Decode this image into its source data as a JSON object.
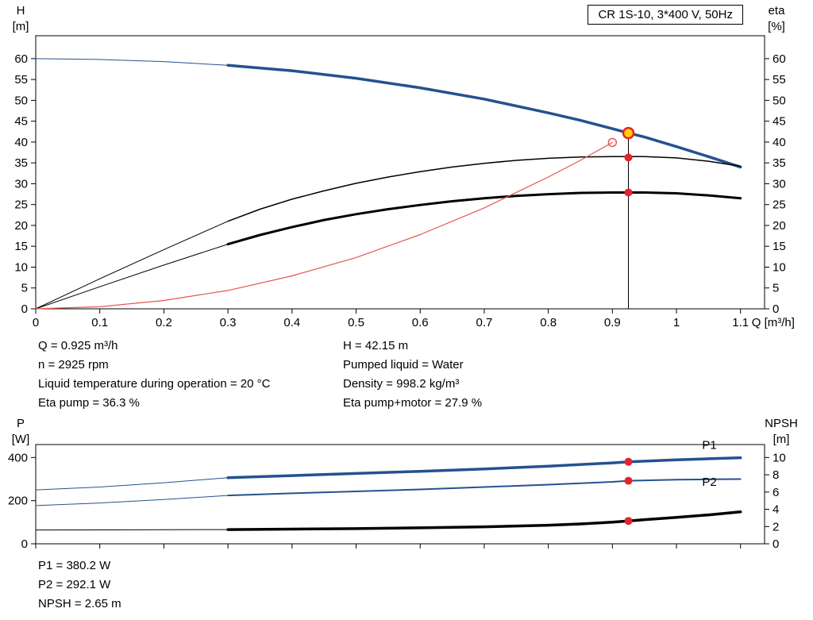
{
  "title_box": "CR 1S-10, 3*400 V, 50Hz",
  "info_top": {
    "left": [
      "Q = 0.925 m³/h",
      "n = 2925 rpm",
      "Liquid temperature during operation = 20 °C",
      "Eta pump = 36.3 %"
    ],
    "right": [
      "H = 42.15 m",
      "Pumped liquid = Water",
      "Density = 998.2 kg/m³",
      "Eta pump+motor = 27.9 %"
    ]
  },
  "info_bottom": [
    "P1 = 380.2 W",
    "P2 = 292.1 W",
    "NPSH = 2.65 m"
  ],
  "colors": {
    "curve_blue": "#25518f",
    "curve_black": "#000000",
    "system_red": "#e4564e",
    "duty_red": "#e8222d",
    "duty_yellow": "#ffd400"
  },
  "chart_data": [
    {
      "id": "qh-eta",
      "type": "line",
      "title": "CR 1S-10, 3*400 V, 50Hz",
      "xlabel": "Q [m³/h]",
      "grid": false,
      "axes": {
        "x": {
          "lim": [
            0,
            1.1375
          ],
          "ticks": [
            0,
            0.1,
            0.2,
            0.3,
            0.4,
            0.5,
            0.6,
            0.7,
            0.8,
            0.9,
            1.0,
            1.1
          ],
          "labels": true
        },
        "left": {
          "label": "H",
          "unit": "[m]",
          "lim": [
            0,
            65.5
          ],
          "ticks": [
            0,
            5,
            10,
            15,
            20,
            25,
            30,
            35,
            40,
            45,
            50,
            55,
            60
          ]
        },
        "right": {
          "label": "eta",
          "unit": "[%]",
          "lim": [
            0,
            65.5
          ],
          "ticks": [
            0,
            5,
            10,
            15,
            20,
            25,
            30,
            35,
            40,
            45,
            50,
            55,
            60
          ]
        }
      },
      "series": [
        {
          "name": "head-lead",
          "color": "#25518f",
          "width": 1,
          "points": [
            [
              0,
              60
            ],
            [
              0.1,
              59.8
            ],
            [
              0.2,
              59.3
            ],
            [
              0.3,
              58.4
            ]
          ]
        },
        {
          "name": "head",
          "color": "#25518f",
          "width": 3.5,
          "points": [
            [
              0.3,
              58.4
            ],
            [
              0.4,
              57.1
            ],
            [
              0.5,
              55.3
            ],
            [
              0.6,
              53.0
            ],
            [
              0.7,
              50.3
            ],
            [
              0.8,
              47.0
            ],
            [
              0.85,
              45.2
            ],
            [
              0.9,
              43.2
            ],
            [
              0.925,
              42.15
            ],
            [
              0.95,
              41.2
            ],
            [
              1.0,
              38.9
            ],
            [
              1.05,
              36.5
            ],
            [
              1.1,
              34.0
            ]
          ]
        },
        {
          "name": "eta-pump-lead",
          "color": "#000000",
          "width": 1,
          "points": [
            [
              0,
              0
            ],
            [
              0.1,
              7.2
            ],
            [
              0.2,
              14.2
            ],
            [
              0.3,
              21.0
            ]
          ]
        },
        {
          "name": "eta-pump",
          "color": "#000000",
          "width": 1.5,
          "points": [
            [
              0.3,
              21.0
            ],
            [
              0.35,
              23.9
            ],
            [
              0.4,
              26.3
            ],
            [
              0.45,
              28.3
            ],
            [
              0.5,
              30.1
            ],
            [
              0.55,
              31.6
            ],
            [
              0.6,
              32.9
            ],
            [
              0.65,
              34.0
            ],
            [
              0.7,
              34.9
            ],
            [
              0.75,
              35.6
            ],
            [
              0.8,
              36.1
            ],
            [
              0.85,
              36.4
            ],
            [
              0.9,
              36.5
            ],
            [
              0.95,
              36.5
            ],
            [
              1.0,
              36.2
            ],
            [
              1.05,
              35.4
            ],
            [
              1.1,
              34.2
            ]
          ]
        },
        {
          "name": "eta-pump-motor-lead",
          "color": "#000000",
          "width": 1,
          "points": [
            [
              0,
              0
            ],
            [
              0.1,
              5.3
            ],
            [
              0.2,
              10.5
            ],
            [
              0.3,
              15.5
            ]
          ]
        },
        {
          "name": "eta-pump-motor",
          "color": "#000000",
          "width": 3,
          "points": [
            [
              0.3,
              15.5
            ],
            [
              0.35,
              17.7
            ],
            [
              0.4,
              19.6
            ],
            [
              0.45,
              21.3
            ],
            [
              0.5,
              22.7
            ],
            [
              0.55,
              23.9
            ],
            [
              0.6,
              24.9
            ],
            [
              0.65,
              25.8
            ],
            [
              0.7,
              26.5
            ],
            [
              0.75,
              27.1
            ],
            [
              0.8,
              27.5
            ],
            [
              0.85,
              27.8
            ],
            [
              0.9,
              27.9
            ],
            [
              0.95,
              27.9
            ],
            [
              1.0,
              27.7
            ],
            [
              1.05,
              27.2
            ],
            [
              1.1,
              26.5
            ]
          ]
        },
        {
          "name": "system-curve",
          "color": "#e4564e",
          "width": 1.2,
          "points": [
            [
              0,
              0
            ],
            [
              0.1,
              0.5
            ],
            [
              0.2,
              2.0
            ],
            [
              0.3,
              4.4
            ],
            [
              0.4,
              7.9
            ],
            [
              0.5,
              12.3
            ],
            [
              0.6,
              17.8
            ],
            [
              0.7,
              24.2
            ],
            [
              0.8,
              31.6
            ],
            [
              0.85,
              35.6
            ],
            [
              0.9,
              39.9
            ]
          ]
        }
      ],
      "vlines": [
        {
          "name": "duty-flow-line",
          "x": 0.925,
          "y1": 0,
          "y2": 42.15,
          "color": "#000000",
          "width": 1
        }
      ],
      "markers": [
        {
          "name": "system-curve-end-marker",
          "x": 0.9,
          "y": 39.9,
          "r": 5,
          "fill": "none",
          "stroke": "#e4564e",
          "sw": 1.5
        },
        {
          "name": "duty-point-marker",
          "x": 0.925,
          "y": 42.15,
          "r": 6.5,
          "fill": "#ffd400",
          "stroke": "#e8222d",
          "sw": 2.5
        },
        {
          "name": "eta-pump-duty-marker",
          "x": 0.925,
          "y": 36.3,
          "r": 5,
          "fill": "#e8222d"
        },
        {
          "name": "eta-pump-motor-duty-marker",
          "x": 0.925,
          "y": 27.9,
          "r": 5,
          "fill": "#e8222d"
        }
      ],
      "labels": []
    },
    {
      "id": "power-npsh",
      "type": "line",
      "title": "",
      "xlabel": "",
      "grid": false,
      "axes": {
        "x": {
          "lim": [
            0,
            1.1375
          ],
          "ticks": [
            0,
            0.1,
            0.2,
            0.3,
            0.4,
            0.5,
            0.6,
            0.7,
            0.8,
            0.9,
            1.0,
            1.1
          ],
          "labels": false
        },
        "left": {
          "label": "P",
          "unit": "[W]",
          "lim": [
            0,
            460
          ],
          "ticks": [
            0,
            200,
            400
          ]
        },
        "right": {
          "label": "NPSH",
          "unit": "[m]",
          "lim": [
            0,
            11.5
          ],
          "ticks": [
            0,
            2,
            4,
            6,
            8,
            10
          ]
        }
      },
      "series": [
        {
          "name": "p1-lead",
          "color": "#25518f",
          "width": 1,
          "points": [
            [
              0,
              250
            ],
            [
              0.1,
              263
            ],
            [
              0.2,
              283
            ],
            [
              0.3,
              306
            ]
          ]
        },
        {
          "name": "p1",
          "color": "#25518f",
          "width": 3.5,
          "points": [
            [
              0.3,
              306
            ],
            [
              0.4,
              316
            ],
            [
              0.5,
              326
            ],
            [
              0.6,
              336
            ],
            [
              0.7,
              347
            ],
            [
              0.8,
              360
            ],
            [
              0.9,
              375
            ],
            [
              0.925,
              380.2
            ],
            [
              1.0,
              389
            ],
            [
              1.05,
              394
            ],
            [
              1.1,
              399
            ]
          ]
        },
        {
          "name": "p2-lead",
          "color": "#25518f",
          "width": 1,
          "points": [
            [
              0,
              177
            ],
            [
              0.1,
              189
            ],
            [
              0.2,
              205
            ],
            [
              0.3,
              224
            ]
          ]
        },
        {
          "name": "p2",
          "color": "#25518f",
          "width": 2,
          "points": [
            [
              0.3,
              224
            ],
            [
              0.4,
              234
            ],
            [
              0.5,
              243
            ],
            [
              0.6,
              252
            ],
            [
              0.7,
              263
            ],
            [
              0.8,
              274
            ],
            [
              0.9,
              287
            ],
            [
              0.925,
              292.1
            ],
            [
              1.0,
              297
            ],
            [
              1.05,
              299
            ],
            [
              1.1,
              300
            ]
          ]
        },
        {
          "name": "npsh-lead",
          "color": "#000000",
          "width": 1,
          "axis": "right",
          "points": [
            [
              0,
              1.6
            ],
            [
              0.15,
              1.62
            ],
            [
              0.3,
              1.65
            ]
          ]
        },
        {
          "name": "npsh",
          "color": "#000000",
          "width": 3.5,
          "axis": "right",
          "points": [
            [
              0.3,
              1.65
            ],
            [
              0.4,
              1.7
            ],
            [
              0.5,
              1.76
            ],
            [
              0.6,
              1.85
            ],
            [
              0.7,
              1.97
            ],
            [
              0.8,
              2.15
            ],
            [
              0.85,
              2.3
            ],
            [
              0.9,
              2.5
            ],
            [
              0.925,
              2.65
            ],
            [
              0.95,
              2.8
            ],
            [
              1.0,
              3.05
            ],
            [
              1.05,
              3.35
            ],
            [
              1.1,
              3.7
            ]
          ]
        }
      ],
      "vlines": [],
      "markers": [
        {
          "name": "p1-duty-marker",
          "x": 0.925,
          "y": 380.2,
          "r": 5,
          "fill": "#e8222d"
        },
        {
          "name": "p2-duty-marker",
          "x": 0.925,
          "y": 292.1,
          "r": 5,
          "fill": "#e8222d"
        },
        {
          "name": "npsh-duty-marker",
          "x": 0.925,
          "y": 2.65,
          "axis": "right",
          "r": 5,
          "fill": "#e8222d"
        }
      ],
      "labels": [
        {
          "name": "p1-curve-label",
          "text": "P1",
          "x": 1.04,
          "y": 440,
          "color": "#25518f",
          "size": 16
        },
        {
          "name": "p2-curve-label",
          "text": "P2",
          "x": 1.04,
          "y": 268,
          "color": "#25518f",
          "size": 16
        }
      ]
    }
  ]
}
